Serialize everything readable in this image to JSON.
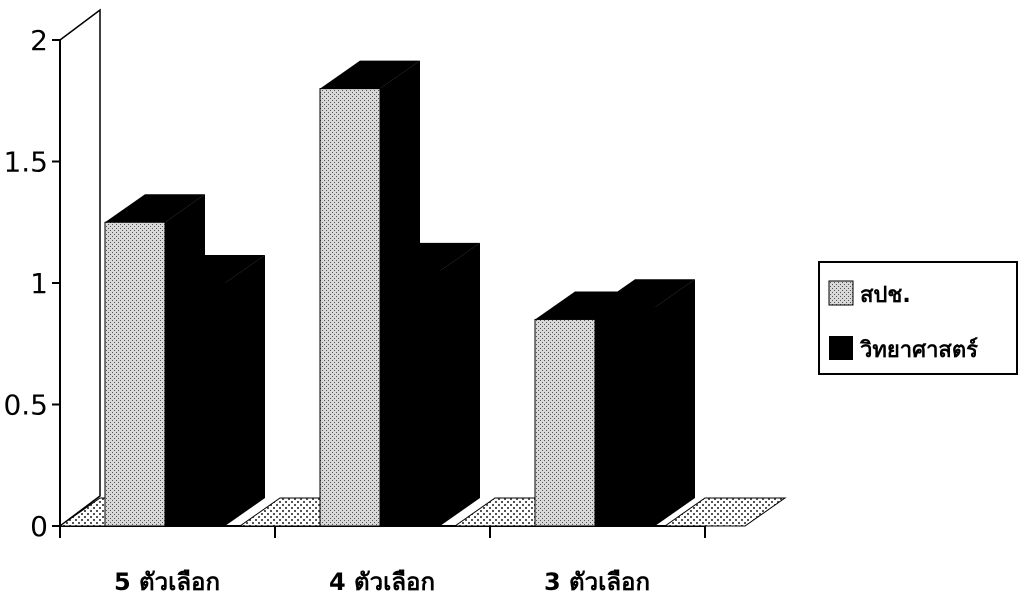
{
  "chart_data": {
    "type": "bar",
    "categories": [
      "5 ตัวเลือก",
      "4 ตัวเลือก",
      "3 ตัวเลือก"
    ],
    "series": [
      {
        "name": "สปช.",
        "values": [
          1.25,
          1.8,
          0.85
        ],
        "pattern": "dotted-gray"
      },
      {
        "name": "วิทยาศาสตร์",
        "values": [
          1.0,
          1.05,
          0.9
        ],
        "color": "#000000"
      }
    ],
    "yticks": [
      "0",
      "0.5",
      "1",
      "1.5",
      "2"
    ],
    "ylim": [
      0,
      2
    ],
    "title": "",
    "xlabel": "",
    "ylabel": "",
    "grid": false,
    "legend_position": "right",
    "style": "3d-column"
  }
}
